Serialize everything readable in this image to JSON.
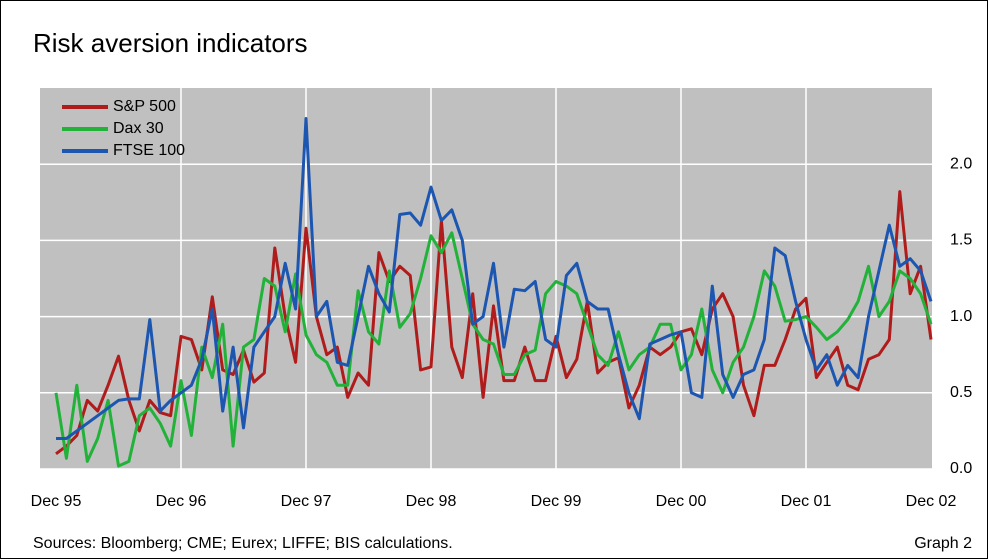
{
  "chart_data": {
    "type": "line",
    "title": "Risk aversion indicators",
    "categories": [
      "Dec 95",
      null,
      null,
      null,
      null,
      null,
      null,
      null,
      null,
      null,
      null,
      null,
      "Dec 96",
      null,
      null,
      null,
      null,
      null,
      null,
      null,
      null,
      null,
      null,
      null,
      "Dec 97",
      null,
      null,
      null,
      null,
      null,
      null,
      null,
      null,
      null,
      null,
      null,
      "Dec 98",
      null,
      null,
      null,
      null,
      null,
      null,
      null,
      null,
      null,
      null,
      null,
      "Dec 99",
      null,
      null,
      null,
      null,
      null,
      null,
      null,
      null,
      null,
      null,
      null,
      "Dec 00",
      null,
      null,
      null,
      null,
      null,
      null,
      null,
      null,
      null,
      null,
      null,
      "Dec 01",
      null,
      null,
      null,
      null,
      null,
      null,
      null,
      null,
      null,
      null,
      null,
      "Dec 02"
    ],
    "series": [
      {
        "name": "S&P 500",
        "color": "#b01c1c",
        "values": [
          0.1,
          0.15,
          0.22,
          0.45,
          0.38,
          0.55,
          0.74,
          0.45,
          0.25,
          0.45,
          0.37,
          0.35,
          0.87,
          0.85,
          0.65,
          1.13,
          0.65,
          0.62,
          0.78,
          0.57,
          0.63,
          1.45,
          1.0,
          0.7,
          1.58,
          1.0,
          0.75,
          0.8,
          0.47,
          0.63,
          0.55,
          1.42,
          1.23,
          1.33,
          1.27,
          0.65,
          0.67,
          1.63,
          0.8,
          0.6,
          1.15,
          0.47,
          1.07,
          0.58,
          0.58,
          0.8,
          0.58,
          0.58,
          0.87,
          0.6,
          0.72,
          1.1,
          0.63,
          0.7,
          0.73,
          0.4,
          0.55,
          0.8,
          0.75,
          0.8,
          0.9,
          0.92,
          0.75,
          1.05,
          1.15,
          1.0,
          0.55,
          0.35,
          0.68,
          0.68,
          0.85,
          1.05,
          1.12,
          0.6,
          0.7,
          0.8,
          0.55,
          0.52,
          0.72,
          0.75,
          0.85,
          1.82,
          1.15,
          1.33,
          0.85
        ]
      },
      {
        "name": "Dax 30",
        "color": "#22b23a",
        "values": [
          0.5,
          0.07,
          0.55,
          0.05,
          0.2,
          0.45,
          0.02,
          0.05,
          0.35,
          0.4,
          0.3,
          0.15,
          0.58,
          0.22,
          0.8,
          0.6,
          0.95,
          0.15,
          0.8,
          0.85,
          1.25,
          1.2,
          0.9,
          1.28,
          0.88,
          0.75,
          0.7,
          0.55,
          0.55,
          1.17,
          0.9,
          0.82,
          1.3,
          0.93,
          1.02,
          1.25,
          1.53,
          1.42,
          1.55,
          1.25,
          0.95,
          0.85,
          0.82,
          0.62,
          0.62,
          0.75,
          0.78,
          1.15,
          1.23,
          1.2,
          1.15,
          0.95,
          0.75,
          0.68,
          0.9,
          0.65,
          0.75,
          0.8,
          0.95,
          0.95,
          0.65,
          0.75,
          1.05,
          0.65,
          0.5,
          0.7,
          0.8,
          1.0,
          1.3,
          1.2,
          0.97,
          0.98,
          1.0,
          0.93,
          0.85,
          0.9,
          0.98,
          1.1,
          1.33,
          1.0,
          1.1,
          1.3,
          1.25,
          1.15,
          0.95
        ]
      },
      {
        "name": "FTSE 100",
        "color": "#1c56b0",
        "values": [
          0.2,
          0.2,
          0.25,
          0.3,
          0.35,
          0.4,
          0.45,
          0.46,
          0.46,
          0.98,
          0.38,
          0.45,
          0.5,
          0.55,
          0.72,
          1.05,
          0.38,
          0.8,
          0.27,
          0.8,
          0.9,
          1.0,
          1.35,
          1.05,
          2.3,
          1.0,
          1.1,
          0.7,
          0.68,
          1.0,
          1.33,
          1.15,
          1.03,
          1.67,
          1.68,
          1.6,
          1.85,
          1.63,
          1.7,
          1.5,
          0.95,
          1.0,
          1.35,
          0.8,
          1.18,
          1.17,
          1.23,
          0.85,
          0.8,
          1.27,
          1.35,
          1.1,
          1.05,
          1.05,
          0.75,
          0.5,
          0.33,
          0.82,
          0.85,
          0.88,
          0.9,
          0.5,
          0.47,
          1.2,
          0.62,
          0.47,
          0.62,
          0.65,
          0.85,
          1.45,
          1.4,
          1.1,
          0.85,
          0.65,
          0.75,
          0.55,
          0.68,
          0.6,
          1.0,
          1.3,
          1.6,
          1.33,
          1.38,
          1.3,
          1.1
        ]
      }
    ],
    "ylim": [
      0,
      2.5
    ],
    "yticks": [
      {
        "value": 0,
        "label": "0.0"
      },
      0.5,
      {
        "value": 1,
        "label": "1.0"
      },
      1.5,
      {
        "value": 2,
        "label": "2.0"
      }
    ],
    "grid": true,
    "legend": "upper left",
    "footnote": "Sources: Bloomberg; CME; Eurex; LIFFE; BIS calculations.",
    "label": "Graph 2"
  }
}
